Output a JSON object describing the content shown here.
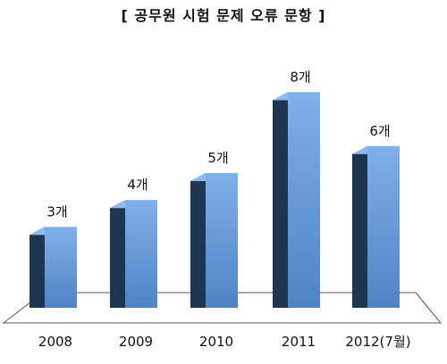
{
  "chart_data": {
    "type": "bar",
    "title": "[ 공무원 시험 문제 오류 문항 ]",
    "categories": [
      "2008",
      "2009",
      "2010",
      "2011",
      "2012(7월)"
    ],
    "values": [
      3,
      4,
      5,
      8,
      6
    ],
    "data_labels": [
      "3개",
      "4개",
      "5개",
      "8개",
      "6개"
    ],
    "xlabel": "",
    "ylabel": "",
    "ylim": [
      0,
      9
    ],
    "grid": false,
    "legend": "none",
    "style": "3d",
    "colors": {
      "bar_front": "#5b8fd0",
      "bar_front_highlight": "#7fb0ea",
      "bar_side": "#1f3550",
      "bar_top": "#8fbaf0",
      "floor": "#ffffff",
      "floor_stroke": "#555555"
    }
  }
}
